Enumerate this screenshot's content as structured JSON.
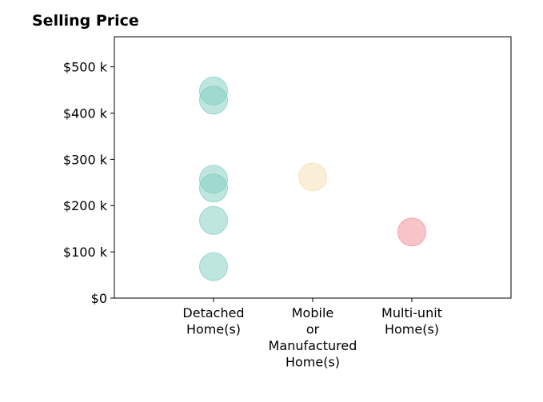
{
  "chart_data": {
    "type": "scatter",
    "title": "Selling Price",
    "xlabel": "",
    "ylabel": "",
    "categories": [
      [
        "Detached",
        "Home(s)"
      ],
      [
        "Mobile",
        "or",
        "Manufactured",
        "Home(s)"
      ],
      [
        "Multi-unit",
        "Home(s)"
      ]
    ],
    "yticks": [
      {
        "value": 0,
        "label": "$0"
      },
      {
        "value": 100000,
        "label": "$100 k"
      },
      {
        "value": 200000,
        "label": "$200 k"
      },
      {
        "value": 300000,
        "label": "$300 k"
      },
      {
        "value": 400000,
        "label": "$400 k"
      },
      {
        "value": 500000,
        "label": "$500 k"
      }
    ],
    "ylim": [
      0,
      565000
    ],
    "xlim": [
      -1,
      3
    ],
    "grid": false,
    "series": [
      {
        "category_index": 0,
        "color": "#7ecdc0",
        "values": [
          448000,
          428000,
          257000,
          238000,
          168000,
          68000
        ]
      },
      {
        "category_index": 1,
        "color": "#f5deb0",
        "values": [
          262000
        ]
      },
      {
        "category_index": 2,
        "color": "#f08a94",
        "values": [
          143000
        ]
      }
    ]
  }
}
